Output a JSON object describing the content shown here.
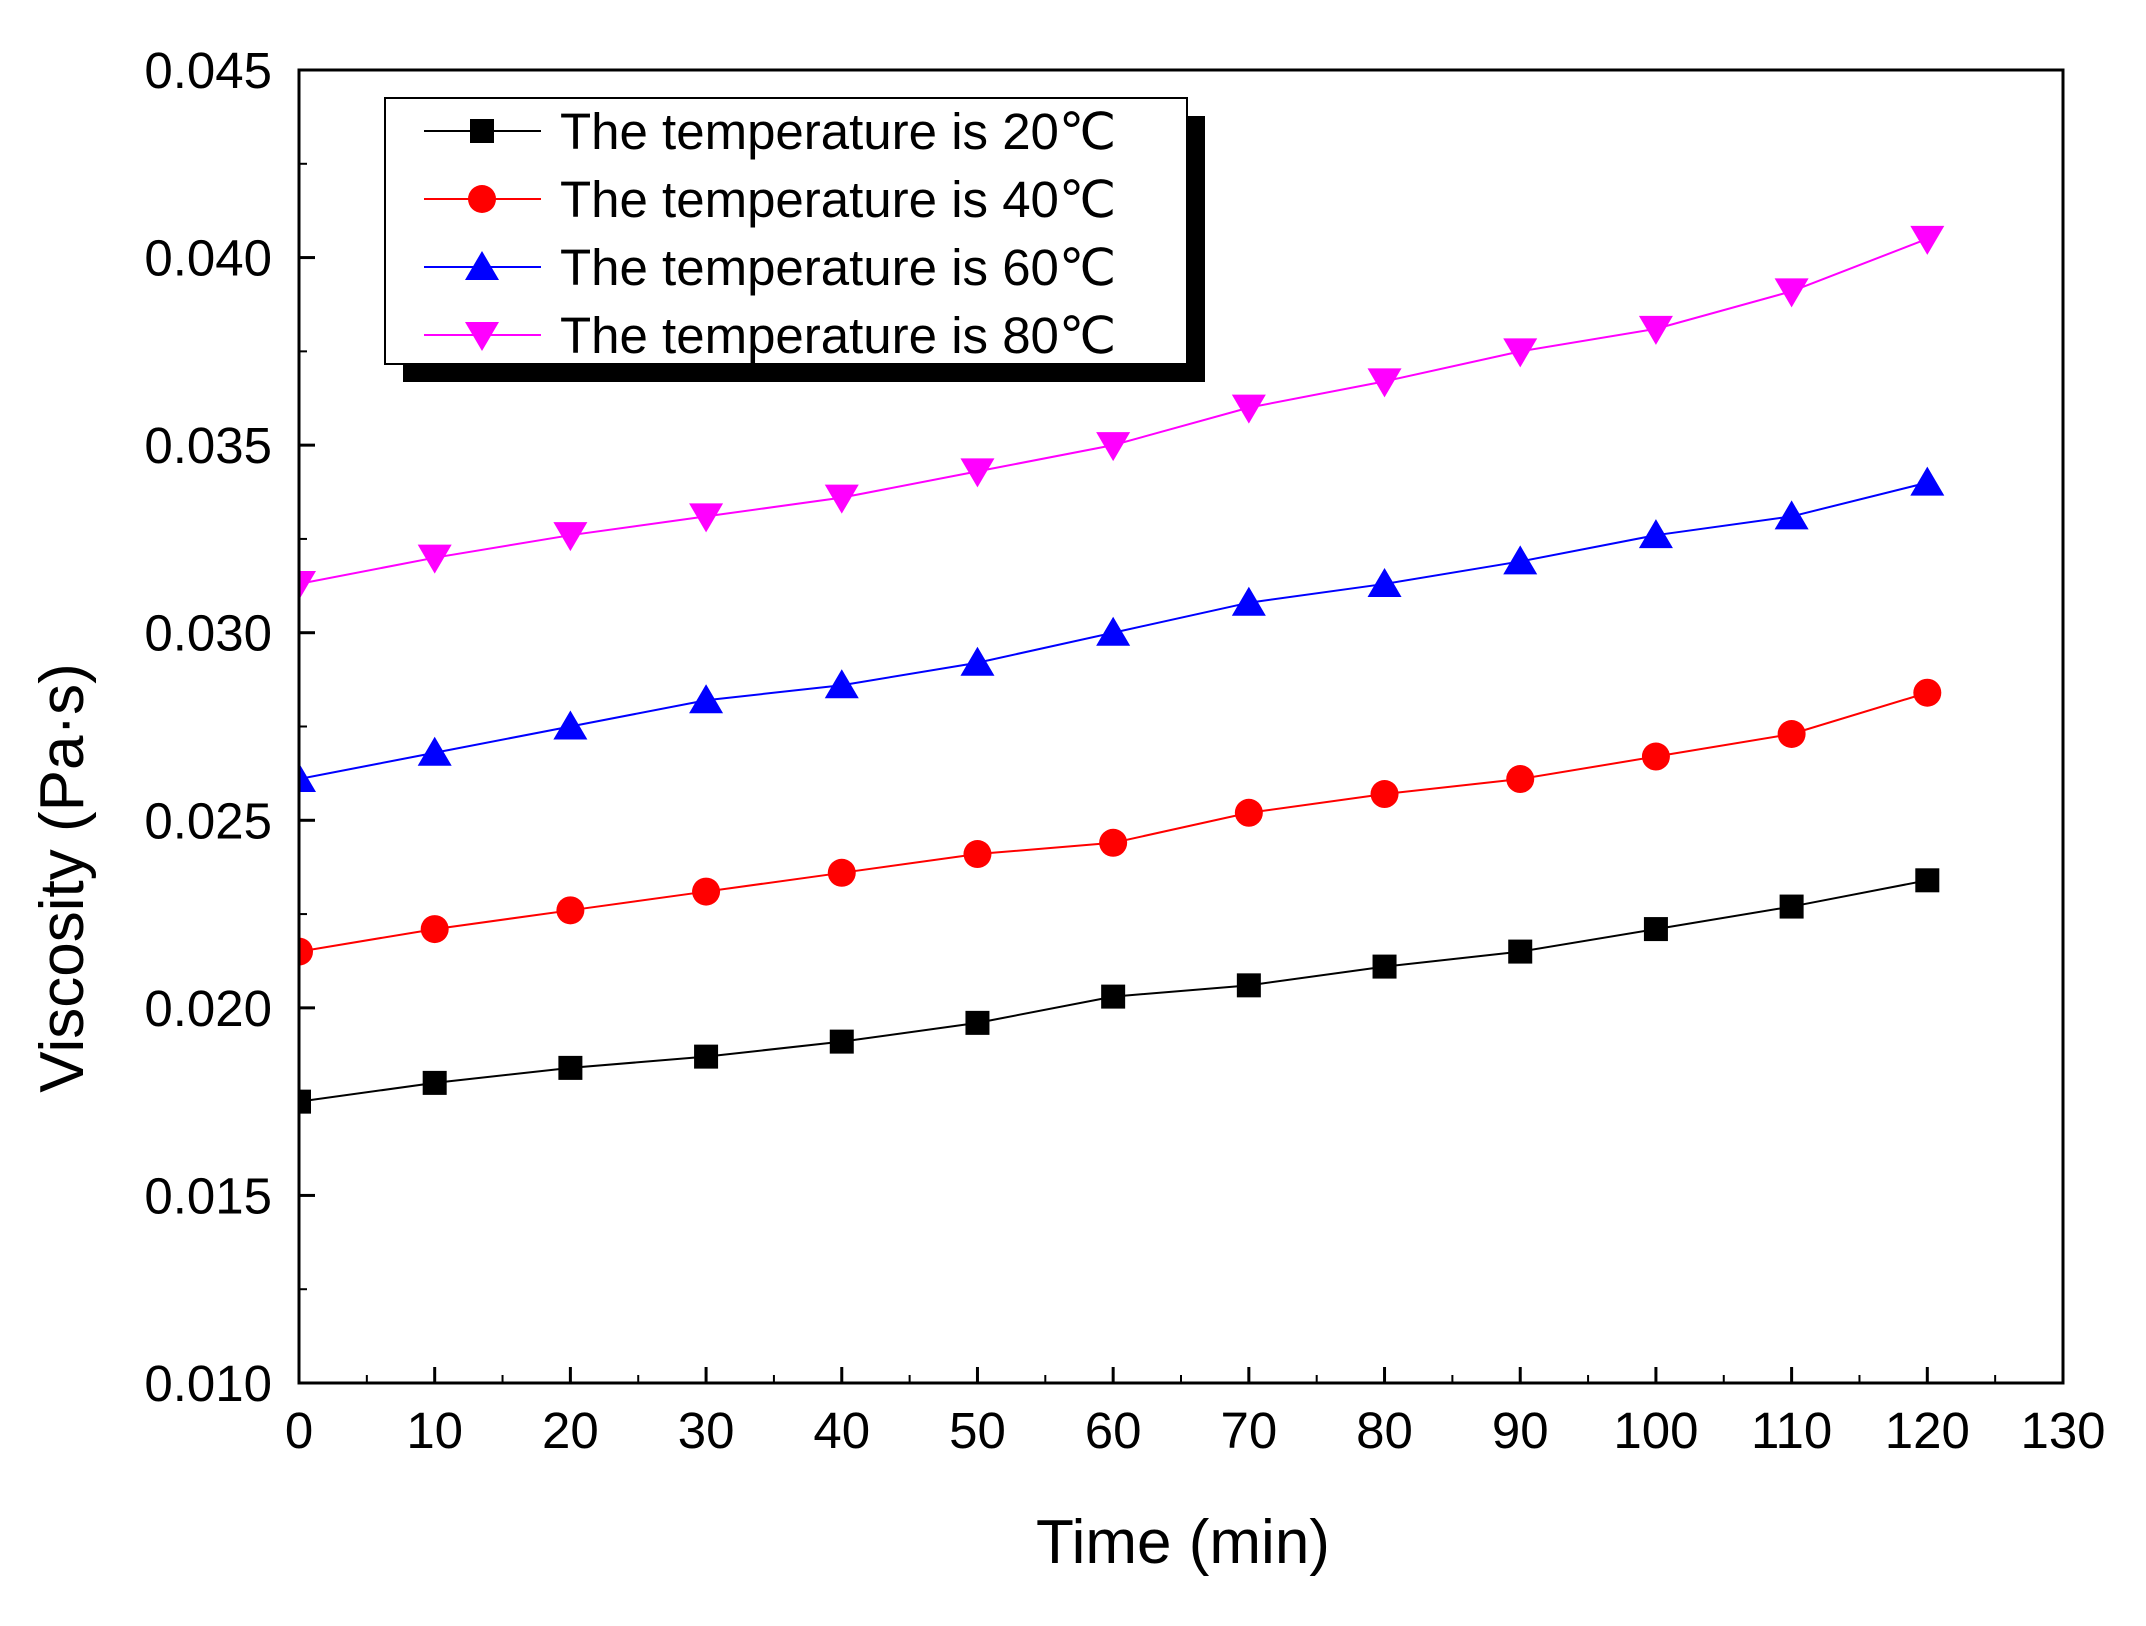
{
  "chart_data": {
    "type": "line",
    "xlabel": "Time (min)",
    "ylabel": "Viscosity (Pa·s)",
    "xlim": [
      0,
      130
    ],
    "ylim": [
      0.01,
      0.045
    ],
    "xticks": [
      0,
      10,
      20,
      30,
      40,
      50,
      60,
      70,
      80,
      90,
      100,
      110,
      120,
      130
    ],
    "xtick_labels": [
      "0",
      "10",
      "20",
      "30",
      "40",
      "50",
      "60",
      "70",
      "80",
      "90",
      "100",
      "110",
      "120",
      "130"
    ],
    "yticks": [
      0.01,
      0.015,
      0.02,
      0.025,
      0.03,
      0.035,
      0.04,
      0.045
    ],
    "ytick_labels": [
      "0.010",
      "0.015",
      "0.020",
      "0.025",
      "0.030",
      "0.035",
      "0.040",
      "0.045"
    ],
    "grid": false,
    "legend_position": "top-left",
    "x": [
      0,
      10,
      20,
      30,
      40,
      50,
      60,
      70,
      80,
      90,
      100,
      110,
      120
    ],
    "series": [
      {
        "name": "The temperature is 20℃",
        "color": "#000000",
        "marker": "square",
        "values": [
          0.0175,
          0.018,
          0.0184,
          0.0187,
          0.0191,
          0.0196,
          0.0203,
          0.0206,
          0.0211,
          0.0215,
          0.0221,
          0.0227,
          0.0234
        ]
      },
      {
        "name": "The temperature is 40℃",
        "color": "#ff0000",
        "marker": "circle",
        "values": [
          0.0215,
          0.0221,
          0.0226,
          0.0231,
          0.0236,
          0.0241,
          0.0244,
          0.0252,
          0.0257,
          0.0261,
          0.0267,
          0.0273,
          0.0284
        ]
      },
      {
        "name": "The temperature is 60℃",
        "color": "#0000ff",
        "marker": "triangle-up",
        "values": [
          0.0261,
          0.0268,
          0.0275,
          0.0282,
          0.0286,
          0.0292,
          0.03,
          0.0308,
          0.0313,
          0.0319,
          0.0326,
          0.0331,
          0.034
        ]
      },
      {
        "name": "The temperature is 80℃",
        "color": "#ff00ff",
        "marker": "triangle-down",
        "values": [
          0.0313,
          0.032,
          0.0326,
          0.0331,
          0.0336,
          0.0343,
          0.035,
          0.036,
          0.0367,
          0.0375,
          0.0381,
          0.0391,
          0.0405
        ]
      }
    ]
  }
}
